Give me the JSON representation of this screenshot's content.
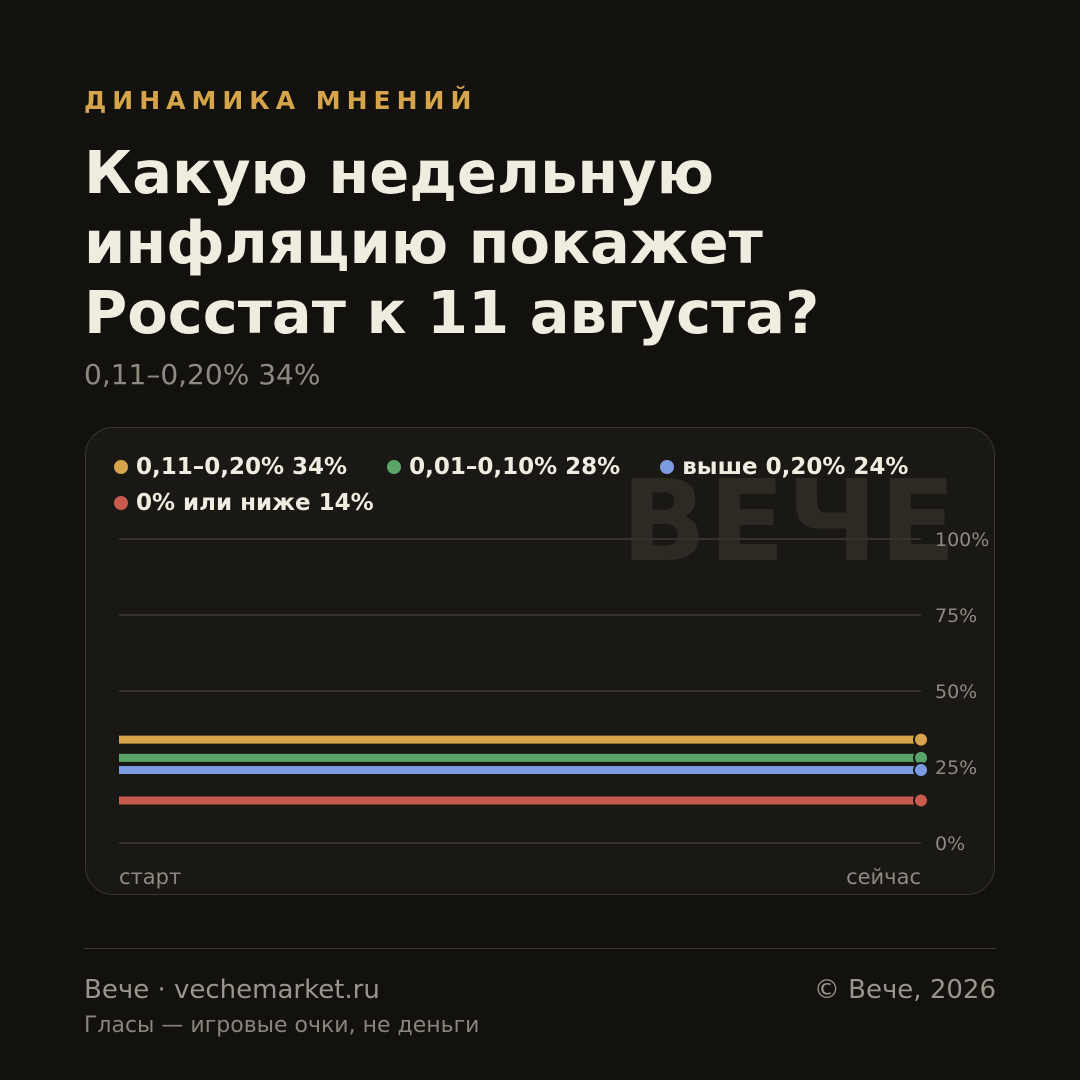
{
  "header": {
    "kicker": "ДИНАМИКА МНЕНИЙ",
    "title": "Какую недельную инфляцию покажет Росстат к 11 августа?",
    "subtitle": "0,11–0,20% 34%"
  },
  "watermark": "ВЕЧЕ",
  "colors": {
    "background": "#12110e",
    "card": "#1a1814",
    "accent": "#d6a44a",
    "text": "#f1ece0"
  },
  "legend": [
    {
      "label": "0,11–0,20% 34%",
      "color": "#d6a44a"
    },
    {
      "label": "0,01–0,10% 28%",
      "color": "#5aa469"
    },
    {
      "label": "выше 0,20% 24%",
      "color": "#7b9be0"
    },
    {
      "label": "0% или ниже 14%",
      "color": "#c85a4e"
    }
  ],
  "chart_data": {
    "type": "line",
    "x": [
      "старт",
      "сейчас"
    ],
    "series": [
      {
        "name": "0,11–0,20%",
        "color": "#d6a44a",
        "values": [
          34,
          34
        ]
      },
      {
        "name": "0,01–0,10%",
        "color": "#5aa469",
        "values": [
          28,
          28
        ]
      },
      {
        "name": "выше 0,20%",
        "color": "#7b9be0",
        "values": [
          24,
          24
        ]
      },
      {
        "name": "0% или ниже",
        "color": "#c85a4e",
        "values": [
          14,
          14
        ]
      }
    ],
    "ylim": [
      0,
      100
    ],
    "yticks": [
      0,
      25,
      50,
      75,
      100
    ],
    "ytick_labels": [
      "0%",
      "25%",
      "50%",
      "75%",
      "100%"
    ],
    "xlabels": [
      "старт",
      "сейчас"
    ],
    "grid": true,
    "legend_position": "top"
  },
  "footer": {
    "left": "Вече · vechemarket.ru",
    "right": "© Вече, 2026",
    "note": "Гласы — игровые очки, не деньги"
  }
}
